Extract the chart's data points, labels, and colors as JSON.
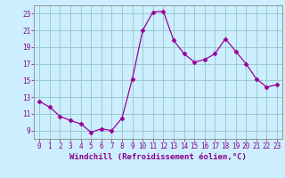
{
  "x_values": [
    0,
    1,
    2,
    3,
    4,
    5,
    6,
    7,
    8,
    9,
    10,
    11,
    12,
    13,
    14,
    15,
    16,
    17,
    18,
    19,
    20,
    21,
    22,
    23
  ],
  "y_values": [
    12.5,
    11.8,
    10.7,
    10.2,
    9.8,
    8.8,
    9.2,
    9.0,
    10.5,
    15.2,
    21.0,
    23.2,
    23.3,
    19.8,
    18.2,
    17.2,
    17.5,
    18.2,
    20.0,
    18.5,
    17.0,
    15.2,
    14.2,
    14.5
  ],
  "line_color": "#990099",
  "marker": "D",
  "marker_size": 2.5,
  "bg_color": "#cceeff",
  "grid_color": "#99cccc",
  "xlabel": "Windchill (Refroidissement éolien,°C)",
  "xlim": [
    -0.5,
    23.5
  ],
  "ylim": [
    8.0,
    24.0
  ],
  "yticks": [
    9,
    11,
    13,
    15,
    17,
    19,
    21,
    23
  ],
  "xticks": [
    0,
    1,
    2,
    3,
    4,
    5,
    6,
    7,
    8,
    9,
    10,
    11,
    12,
    13,
    14,
    15,
    16,
    17,
    18,
    19,
    20,
    21,
    22,
    23
  ],
  "tick_color": "#880088",
  "label_color": "#880088",
  "spine_color": "#888888",
  "tick_fontsize": 5.5,
  "label_fontsize": 6.5
}
